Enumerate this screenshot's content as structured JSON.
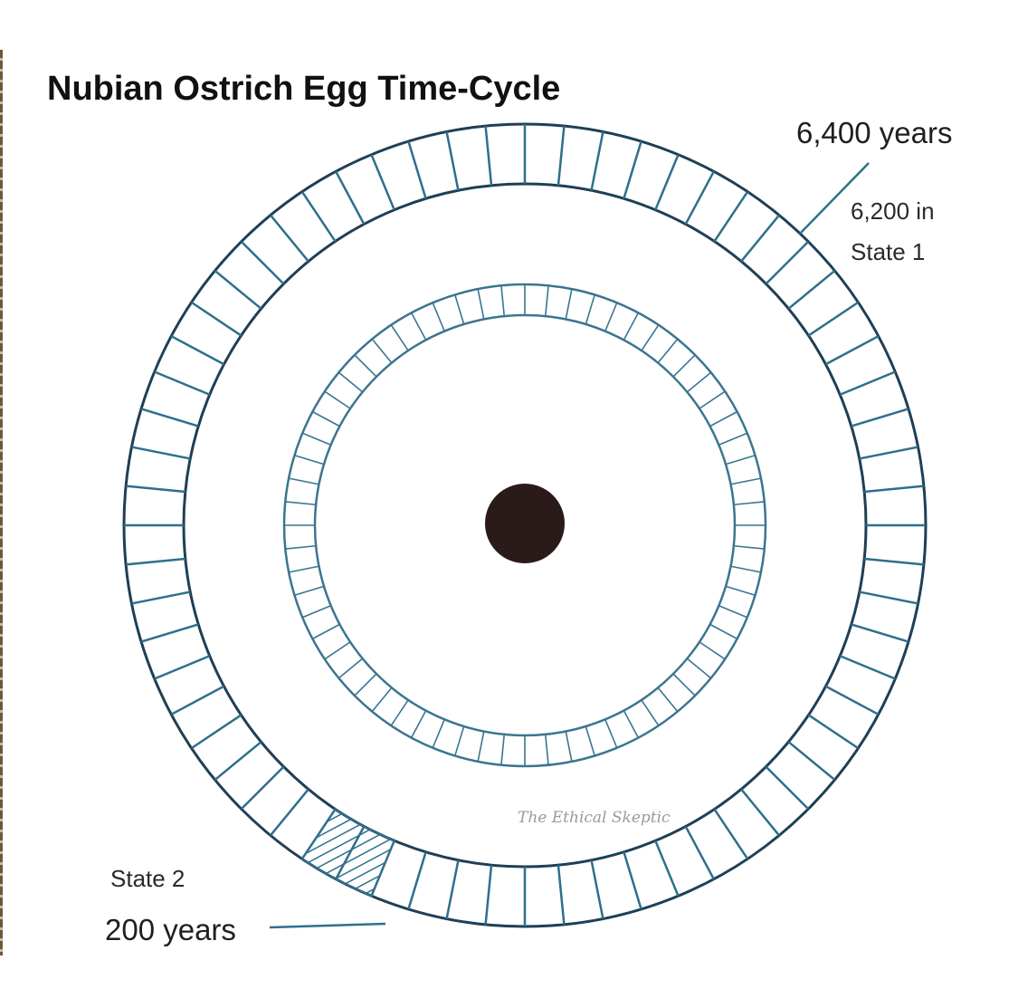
{
  "title": "Nubian Ostrich Egg Time-Cycle",
  "labels": {
    "total": "6,400 years",
    "state1_line1": "6,200 in",
    "state1_line2": "State 1",
    "state2": "State 2",
    "state2_years": "200 years"
  },
  "watermark": "The Ethical Skeptic",
  "rings": {
    "outer_segments": 64,
    "inner_segments": 64,
    "state2_hatched_segments": 2
  },
  "colors": {
    "segment_stroke": "#2e6f8c",
    "ring_stroke": "#1f3f55",
    "inner_stroke": "#3b7590",
    "center_dot": "#2a1a1a",
    "hatch": "#2e6f8c"
  }
}
